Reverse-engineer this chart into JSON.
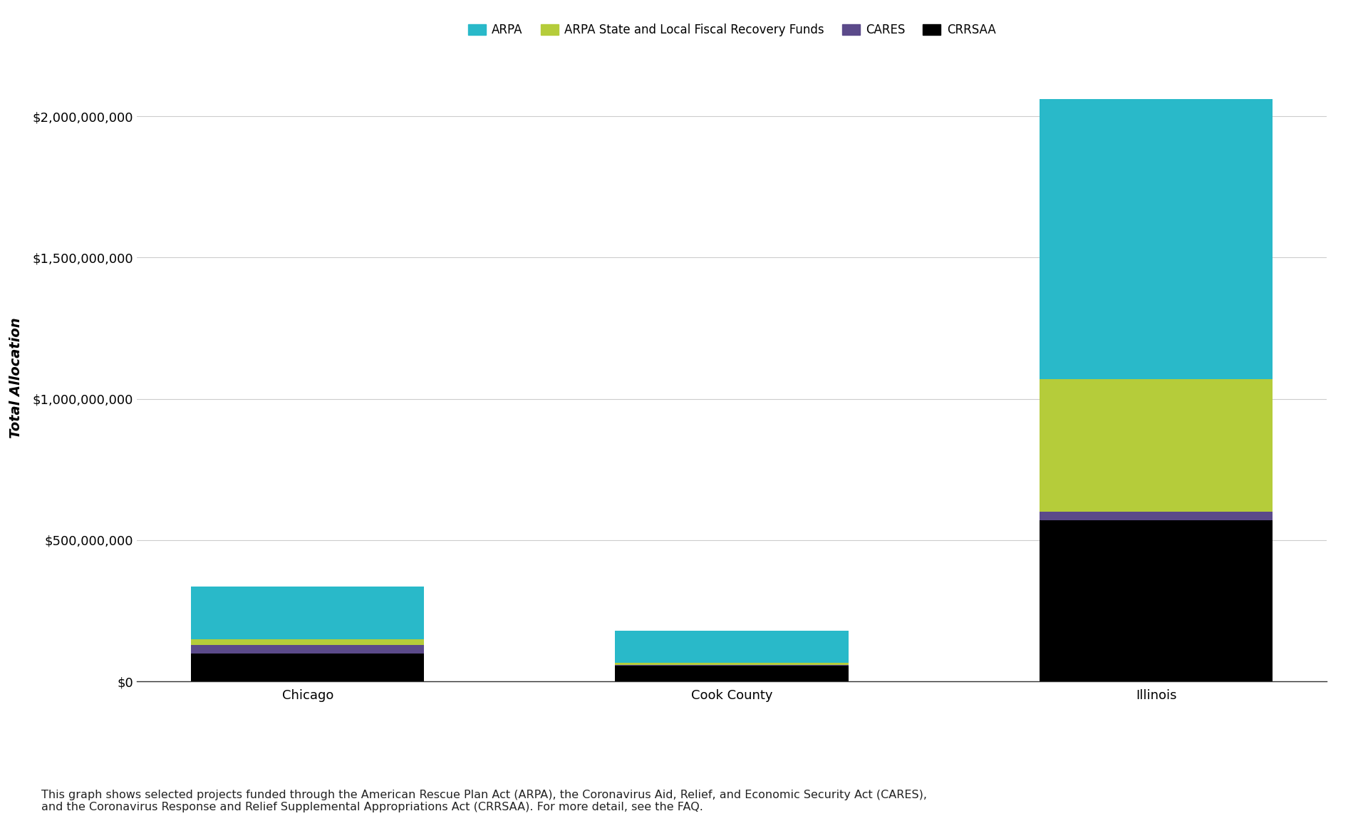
{
  "categories": [
    "Chicago",
    "Cook County",
    "Illinois"
  ],
  "series": [
    {
      "name": "CRRSAA",
      "color": "#000000",
      "values": [
        100000000,
        55000000,
        570000000
      ]
    },
    {
      "name": "CARES",
      "color": "#5b4a8a",
      "values": [
        28000000,
        4000000,
        30000000
      ]
    },
    {
      "name": "ARPA State and Local Fiscal Recovery Funds",
      "color": "#b5cc3a",
      "values": [
        20000000,
        6000000,
        470000000
      ]
    },
    {
      "name": "ARPA",
      "color": "#29b9c9",
      "values": [
        187000000,
        115000000,
        990000000
      ]
    }
  ],
  "ylabel": "Total Allocation",
  "ylim": [
    0,
    2150000000
  ],
  "yticks": [
    0,
    500000000,
    1000000000,
    1500000000,
    2000000000
  ],
  "ytick_labels": [
    "$0",
    "$500,000,000",
    "$1,000,000,000",
    "$1,500,000,000",
    "$2,000,000,000"
  ],
  "legend_order": [
    "ARPA",
    "ARPA State and Local Fiscal Recovery Funds",
    "CARES",
    "CRRSAA"
  ],
  "legend_colors": [
    "#29b9c9",
    "#b5cc3a",
    "#5b4a8a",
    "#000000"
  ],
  "footnote": "This graph shows selected projects funded through the American Rescue Plan Act (ARPA), the Coronavirus Aid, Relief, and Economic Security Act (CARES),\nand the Coronavirus Response and Relief Supplemental Appropriations Act (CRRSAA). For more detail, see the FAQ.",
  "background_color": "#ffffff",
  "bar_width": 0.55,
  "axis_label_fontsize": 14,
  "tick_fontsize": 13,
  "legend_fontsize": 12,
  "footnote_fontsize": 11.5
}
